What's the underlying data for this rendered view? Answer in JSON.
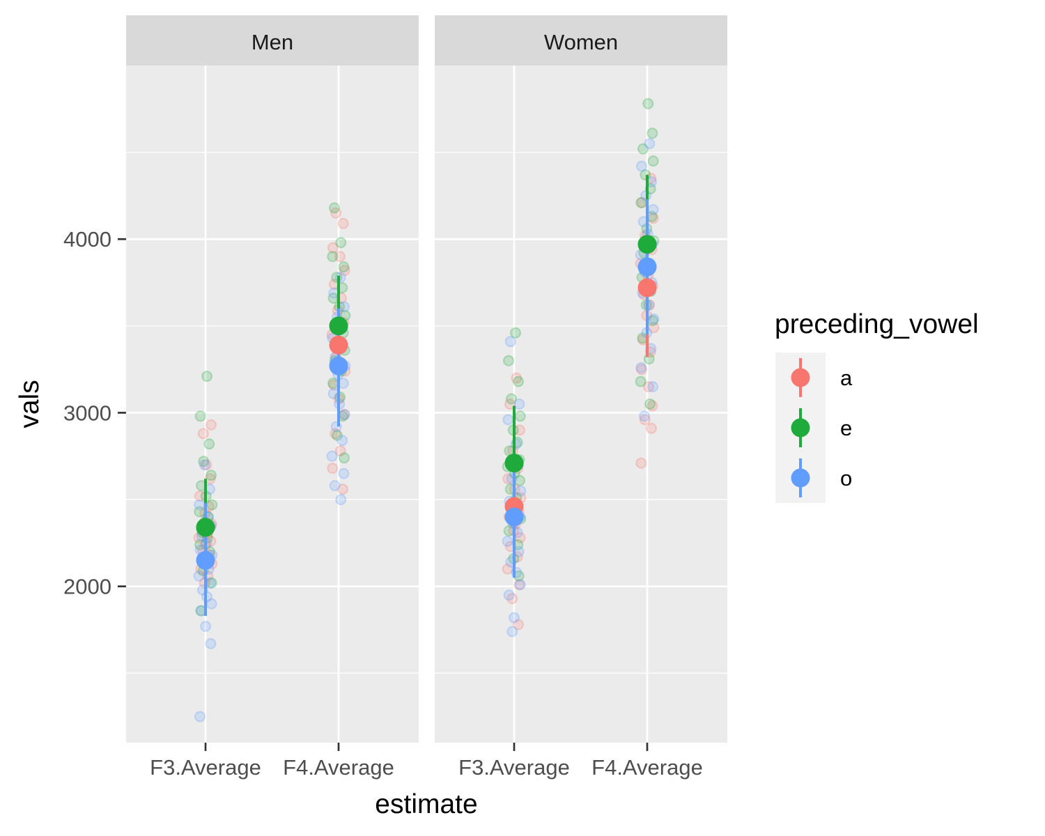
{
  "chart_data": {
    "type": "scatter",
    "title": "",
    "xlabel": "estimate",
    "ylabel": "vals",
    "ylim": [
      1100,
      5000
    ],
    "yticks": [
      2000,
      3000,
      4000
    ],
    "ytick_labels": [
      "2000",
      "3000",
      "4000"
    ],
    "categories": [
      "F3.Average",
      "F4.Average"
    ],
    "facets": [
      "Men",
      "Women"
    ],
    "grid": true,
    "legend": {
      "title": "preceding_vowel",
      "position": "right",
      "entries": [
        "a",
        "e",
        "o"
      ]
    },
    "colors": {
      "a": "#F8766D",
      "e": "#1FAA3C",
      "o": "#619CFF",
      "panel_bg": "#EBEBEB",
      "strip_bg": "#D9D9D9"
    },
    "summary": [
      {
        "facet": "Men",
        "category": "F3.Average",
        "vowel": "a",
        "mean": 2340,
        "lower": 2060,
        "upper": 2620
      },
      {
        "facet": "Men",
        "category": "F3.Average",
        "vowel": "e",
        "mean": 2340,
        "lower": 2060,
        "upper": 2620
      },
      {
        "facet": "Men",
        "category": "F3.Average",
        "vowel": "o",
        "mean": 2150,
        "lower": 1830,
        "upper": 2480
      },
      {
        "facet": "Men",
        "category": "F4.Average",
        "vowel": "a",
        "mean": 3390,
        "lower": 3000,
        "upper": 3780
      },
      {
        "facet": "Men",
        "category": "F4.Average",
        "vowel": "e",
        "mean": 3500,
        "lower": 3210,
        "upper": 3790
      },
      {
        "facet": "Men",
        "category": "F4.Average",
        "vowel": "o",
        "mean": 3270,
        "lower": 2920,
        "upper": 3600
      },
      {
        "facet": "Women",
        "category": "F3.Average",
        "vowel": "a",
        "mean": 2460,
        "lower": 2200,
        "upper": 2720
      },
      {
        "facet": "Women",
        "category": "F3.Average",
        "vowel": "e",
        "mean": 2710,
        "lower": 2380,
        "upper": 3040
      },
      {
        "facet": "Women",
        "category": "F3.Average",
        "vowel": "o",
        "mean": 2400,
        "lower": 2050,
        "upper": 2750
      },
      {
        "facet": "Women",
        "category": "F4.Average",
        "vowel": "a",
        "mean": 3720,
        "lower": 3320,
        "upper": 4110
      },
      {
        "facet": "Women",
        "category": "F4.Average",
        "vowel": "e",
        "mean": 3970,
        "lower": 3580,
        "upper": 4370
      },
      {
        "facet": "Women",
        "category": "F4.Average",
        "vowel": "o",
        "mean": 3840,
        "lower": 3450,
        "upper": 4230
      }
    ],
    "raw_points": [
      {
        "facet": "Men",
        "category": "F3.Average",
        "vowel": "a",
        "jitter": [
          -0.05,
          0.02,
          0.1,
          -0.12,
          0.07,
          -0.01,
          0.13,
          -0.08,
          0.04,
          -0.14,
          0.11,
          0.0,
          -0.06,
          0.09,
          -0.03,
          0.14,
          -0.1,
          0.05,
          -0.02,
          0.12
        ],
        "values": [
          2880,
          2700,
          2620,
          2520,
          2460,
          2420,
          2360,
          2330,
          2300,
          2280,
          2260,
          2240,
          2210,
          2180,
          2160,
          2130,
          2100,
          2060,
          2020,
          2930
        ]
      },
      {
        "facet": "Men",
        "category": "F3.Average",
        "vowel": "e",
        "jitter": [
          0.03,
          -0.11,
          0.08,
          -0.04,
          0.12,
          -0.09,
          0.01,
          0.14,
          -0.13,
          0.06,
          -0.02,
          0.1,
          -0.07,
          0.04,
          -0.12,
          0.09,
          0.0,
          -0.05,
          0.13,
          -0.1
        ],
        "values": [
          3210,
          2980,
          2820,
          2720,
          2640,
          2580,
          2520,
          2470,
          2430,
          2400,
          2370,
          2340,
          2310,
          2280,
          2240,
          2200,
          2150,
          2090,
          2020,
          1860
        ]
      },
      {
        "facet": "Men",
        "category": "F3.Average",
        "vowel": "o",
        "jitter": [
          -0.02,
          0.09,
          -0.13,
          0.05,
          0.12,
          -0.08,
          0.02,
          -0.11,
          0.14,
          -0.04,
          0.07,
          -0.14,
          0.1,
          -0.06,
          0.03,
          0.13,
          -0.09,
          0.0,
          0.11,
          -0.12
        ],
        "values": [
          2700,
          2560,
          2470,
          2400,
          2350,
          2290,
          2250,
          2210,
          2180,
          2140,
          2100,
          2060,
          2020,
          1980,
          1940,
          1900,
          1860,
          1770,
          1670,
          1250
        ]
      },
      {
        "facet": "Men",
        "category": "F4.Average",
        "vowel": "a",
        "jitter": [
          -0.06,
          0.1,
          -0.12,
          0.03,
          0.13,
          -0.09,
          0.06,
          -0.02,
          0.11,
          -0.14,
          0.08,
          -0.05,
          0.14,
          -0.1,
          0.01,
          0.12,
          -0.07,
          0.04,
          -0.13,
          0.09
        ],
        "values": [
          4150,
          4090,
          3950,
          3900,
          3820,
          3740,
          3660,
          3590,
          3520,
          3450,
          3390,
          3320,
          3240,
          3160,
          3080,
          2990,
          2880,
          2780,
          2680,
          2560
        ]
      },
      {
        "facet": "Men",
        "category": "F4.Average",
        "vowel": "e",
        "jitter": [
          -0.09,
          0.05,
          -0.13,
          0.11,
          -0.04,
          0.08,
          -0.11,
          0.02,
          0.14,
          -0.06,
          0.1,
          -0.01,
          0.13,
          -0.08,
          0.06,
          -0.12,
          0.03,
          0.09,
          -0.03,
          0.12
        ],
        "values": [
          4180,
          3980,
          3900,
          3840,
          3780,
          3720,
          3660,
          3610,
          3560,
          3510,
          3460,
          3410,
          3360,
          3300,
          3240,
          3170,
          3090,
          2980,
          2870,
          2740
        ]
      },
      {
        "facet": "Men",
        "category": "F4.Average",
        "vowel": "o",
        "jitter": [
          0.04,
          -0.1,
          0.12,
          -0.03,
          0.09,
          -0.13,
          0.06,
          -0.07,
          0.14,
          -0.01,
          0.1,
          -0.11,
          0.02,
          0.13,
          -0.05,
          0.08,
          -0.14,
          0.11,
          -0.08,
          0.05
        ],
        "values": [
          3780,
          3690,
          3610,
          3550,
          3490,
          3430,
          3370,
          3320,
          3270,
          3220,
          3170,
          3110,
          3050,
          2990,
          2920,
          2840,
          2750,
          2650,
          2580,
          2500
        ]
      },
      {
        "facet": "Women",
        "category": "F3.Average",
        "vowel": "a",
        "jitter": [
          0.05,
          -0.09,
          0.12,
          -0.03,
          0.08,
          -0.13,
          0.01,
          0.14,
          -0.06,
          0.1,
          -0.11,
          0.03,
          -0.01,
          0.13,
          -0.08,
          0.07,
          -0.14,
          0.11,
          -0.04,
          0.09
        ],
        "values": [
          3200,
          3050,
          2900,
          2780,
          2680,
          2620,
          2560,
          2510,
          2470,
          2430,
          2400,
          2360,
          2320,
          2280,
          2230,
          2170,
          2100,
          2010,
          1930,
          1780
        ]
      },
      {
        "facet": "Women",
        "category": "F3.Average",
        "vowel": "e",
        "jitter": [
          0.03,
          -0.12,
          0.09,
          -0.06,
          0.13,
          -0.02,
          0.07,
          -0.1,
          0.11,
          -0.14,
          0.01,
          0.12,
          -0.08,
          0.05,
          -0.04,
          0.14,
          -0.11,
          0.08,
          -0.01,
          0.1
        ],
        "values": [
          3460,
          3300,
          3180,
          3080,
          2980,
          2900,
          2830,
          2780,
          2730,
          2690,
          2650,
          2610,
          2560,
          2510,
          2450,
          2390,
          2320,
          2240,
          2160,
          2060
        ]
      },
      {
        "facet": "Women",
        "category": "F3.Average",
        "vowel": "o",
        "jitter": [
          -0.08,
          0.11,
          -0.13,
          0.04,
          0.09,
          -0.05,
          0.14,
          -0.1,
          0.02,
          0.12,
          -0.02,
          0.07,
          -0.14,
          0.1,
          -0.07,
          0.05,
          0.13,
          -0.11,
          0.0,
          -0.04
        ],
        "values": [
          3410,
          3050,
          2960,
          2820,
          2700,
          2620,
          2550,
          2490,
          2440,
          2400,
          2360,
          2310,
          2260,
          2200,
          2140,
          2080,
          2010,
          1950,
          1820,
          1740
        ]
      },
      {
        "facet": "Women",
        "category": "F4.Average",
        "vowel": "a",
        "jitter": [
          0.08,
          -0.11,
          0.13,
          -0.04,
          0.1,
          -0.14,
          0.02,
          0.12,
          -0.07,
          0.05,
          -0.01,
          0.14,
          -0.09,
          0.07,
          -0.12,
          0.03,
          0.11,
          -0.05,
          0.09,
          -0.13
        ],
        "values": [
          4350,
          4210,
          4120,
          4020,
          3940,
          3860,
          3790,
          3730,
          3680,
          3620,
          3560,
          3490,
          3420,
          3350,
          3250,
          3150,
          3040,
          2960,
          2910,
          2710
        ]
      },
      {
        "facet": "Women",
        "category": "F4.Average",
        "vowel": "e",
        "jitter": [
          0.02,
          0.11,
          -0.09,
          0.13,
          -0.04,
          0.07,
          -0.13,
          0.1,
          -0.01,
          0.14,
          -0.07,
          0.05,
          -0.11,
          0.08,
          -0.02,
          0.12,
          -0.1,
          0.04,
          -0.14,
          0.06
        ],
        "values": [
          4780,
          4610,
          4520,
          4450,
          4370,
          4290,
          4210,
          4130,
          4060,
          3990,
          3920,
          3850,
          3780,
          3700,
          3620,
          3530,
          3430,
          3310,
          3180,
          3050
        ]
      },
      {
        "facet": "Women",
        "category": "F4.Average",
        "vowel": "o",
        "jitter": [
          0.05,
          -0.12,
          0.09,
          -0.03,
          0.13,
          -0.08,
          0.01,
          0.11,
          -0.14,
          0.06,
          -0.05,
          0.1,
          -0.1,
          0.03,
          0.14,
          -0.01,
          0.08,
          -0.13,
          0.12,
          -0.06
        ],
        "values": [
          4550,
          4420,
          4330,
          4250,
          4170,
          4100,
          4030,
          3970,
          3910,
          3860,
          3810,
          3750,
          3690,
          3620,
          3540,
          3460,
          3370,
          3260,
          3150,
          2980
        ]
      }
    ]
  }
}
